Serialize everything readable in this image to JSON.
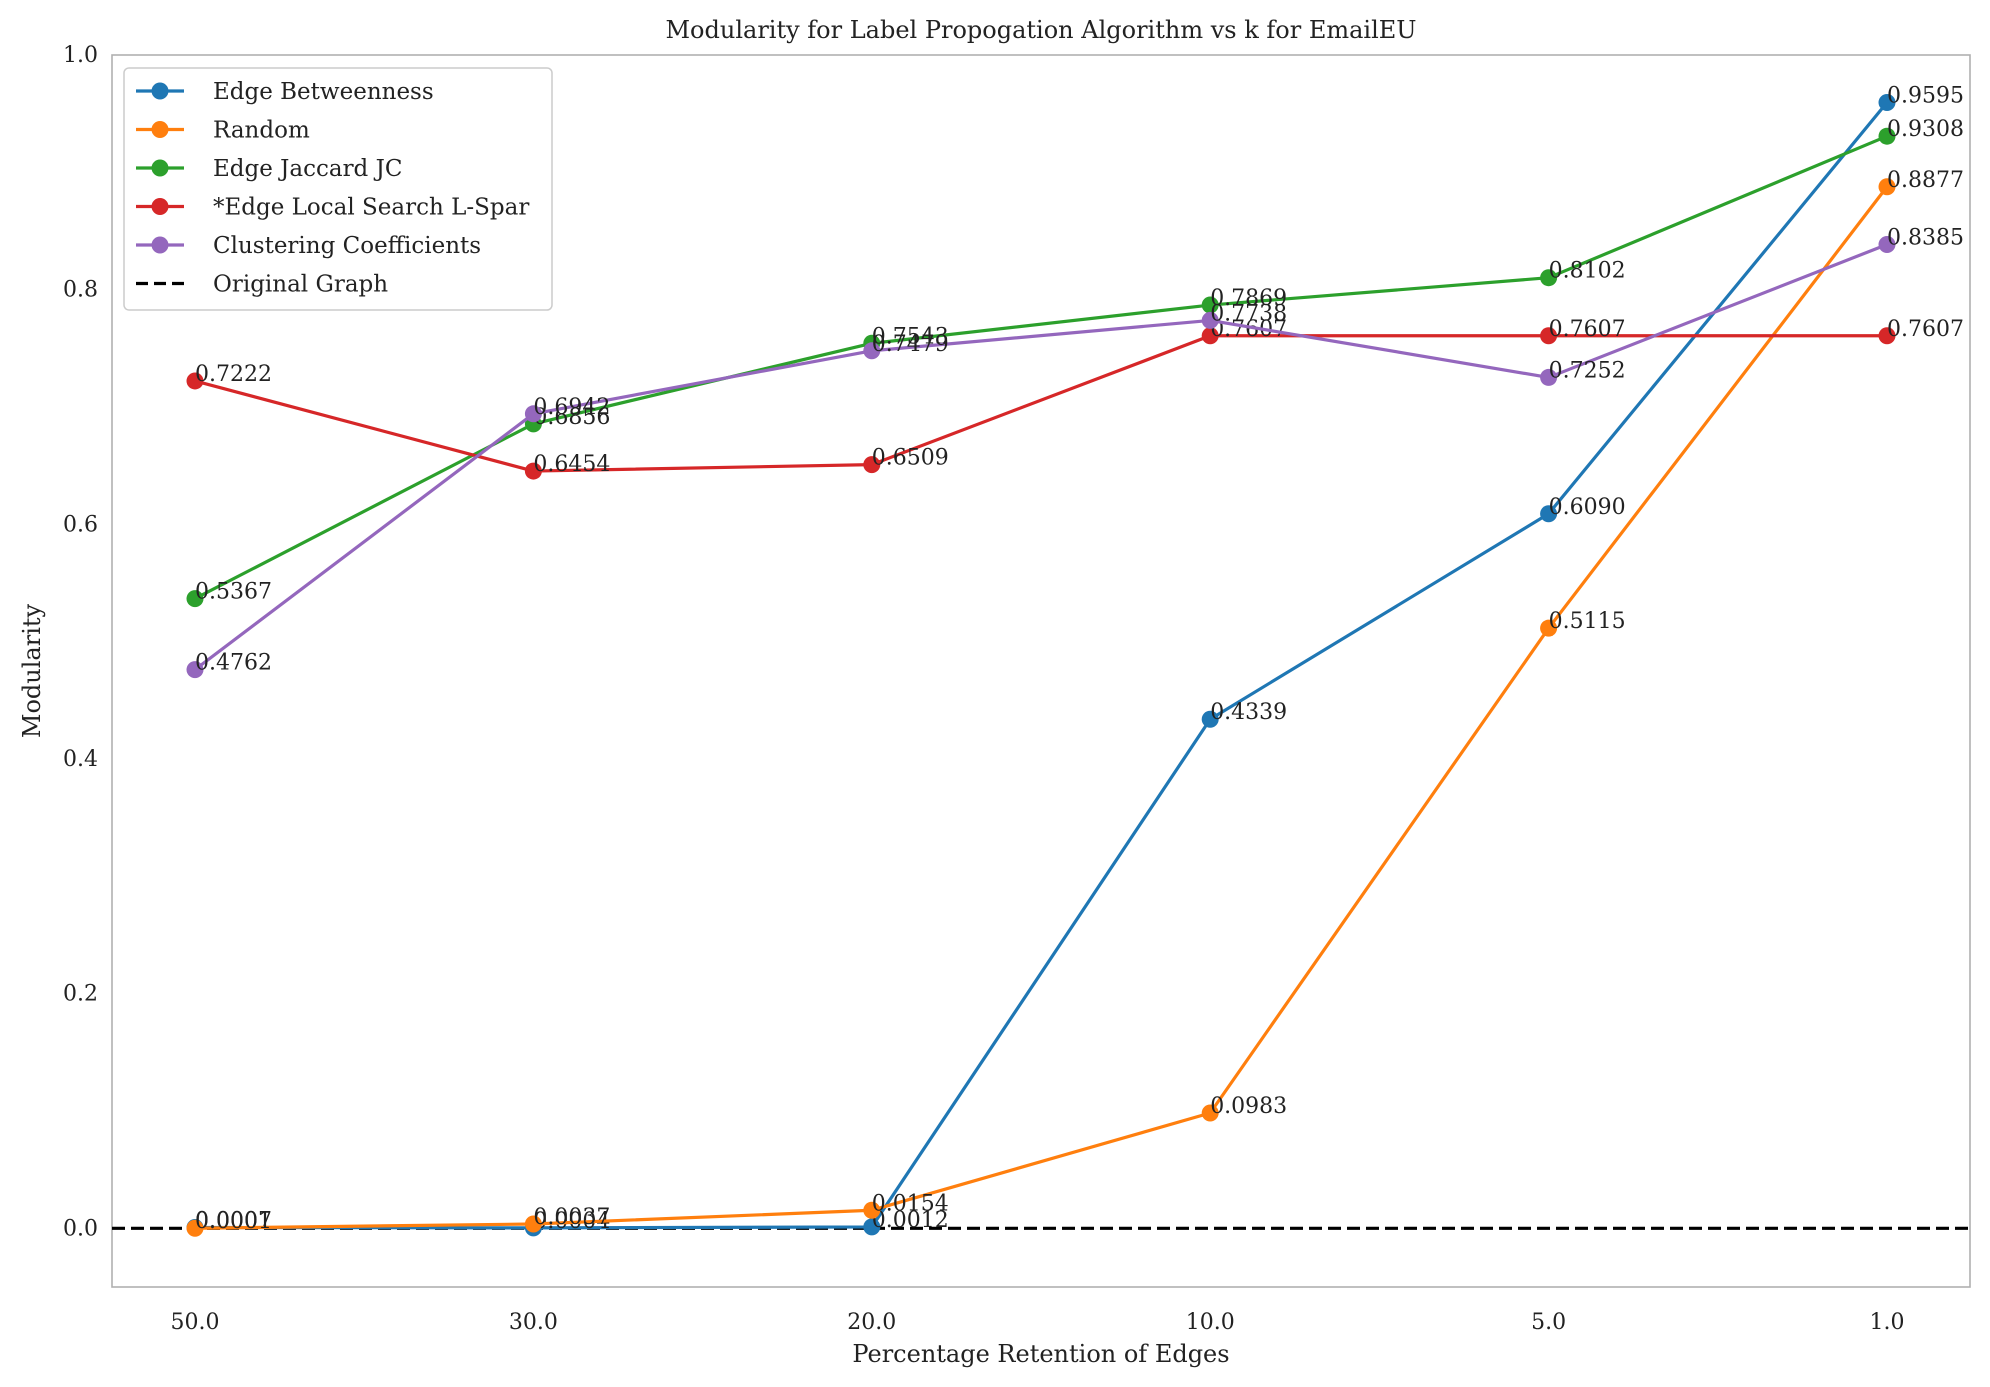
{
  "chart_data": {
    "type": "line",
    "title": "Modularity for Label Propogation Algorithm vs k for EmailEU",
    "xlabel": "Percentage Retention of Edges",
    "ylabel": "Modularity",
    "categories": [
      "50.0",
      "30.0",
      "20.0",
      "10.0",
      "5.0",
      "1.0"
    ],
    "ylim": [
      -0.05,
      1.0
    ],
    "yticks": [
      0.0,
      0.2,
      0.4,
      0.6,
      0.8,
      1.0
    ],
    "ytick_labels": [
      "0.0",
      "0.2",
      "0.4",
      "0.6",
      "0.8",
      "1.0"
    ],
    "grid": false,
    "legend_position": "top-left",
    "series": [
      {
        "name": "Edge Betweenness",
        "color": "#1f77b4",
        "values": [
          0.0007,
          0.0004,
          0.0012,
          0.4339,
          0.609,
          0.9595
        ],
        "labels": [
          "0.0007",
          "0.0004",
          "0.0012",
          "0.4339",
          "0.6090",
          "0.9595"
        ]
      },
      {
        "name": "Random",
        "color": "#ff7f0e",
        "values": [
          0.0001,
          0.0037,
          0.0154,
          0.0983,
          0.5115,
          0.8877
        ],
        "labels": [
          "0.0001",
          "0.0037",
          "0.0154",
          "0.0983",
          "0.5115",
          "0.8877"
        ]
      },
      {
        "name": "Edge Jaccard JC",
        "color": "#2ca02c",
        "values": [
          0.5367,
          0.6856,
          0.7543,
          0.7869,
          0.8102,
          0.9308
        ],
        "labels": [
          "0.5367",
          "0.6856",
          "0.7543",
          "0.7869",
          "0.8102",
          "0.9308"
        ]
      },
      {
        "name": "*Edge Local Search L-Spar",
        "color": "#d62728",
        "values": [
          0.7222,
          0.6454,
          0.6509,
          0.7607,
          0.7607,
          0.7607
        ],
        "labels": [
          "0.7222",
          "0.6454",
          "0.6509",
          "0.7607",
          "0.7607",
          "0.7607"
        ]
      },
      {
        "name": "Clustering Coefficients",
        "color": "#9467bd",
        "values": [
          0.4762,
          0.6942,
          0.7479,
          0.7738,
          0.7252,
          0.8385
        ],
        "labels": [
          "0.4762",
          "0.6942",
          "0.7479",
          "0.7738",
          "0.7252",
          "0.8385"
        ]
      }
    ],
    "reference_line": {
      "name": "Original Graph",
      "value": 0.0,
      "color": "#000000",
      "style": "dashed"
    }
  }
}
